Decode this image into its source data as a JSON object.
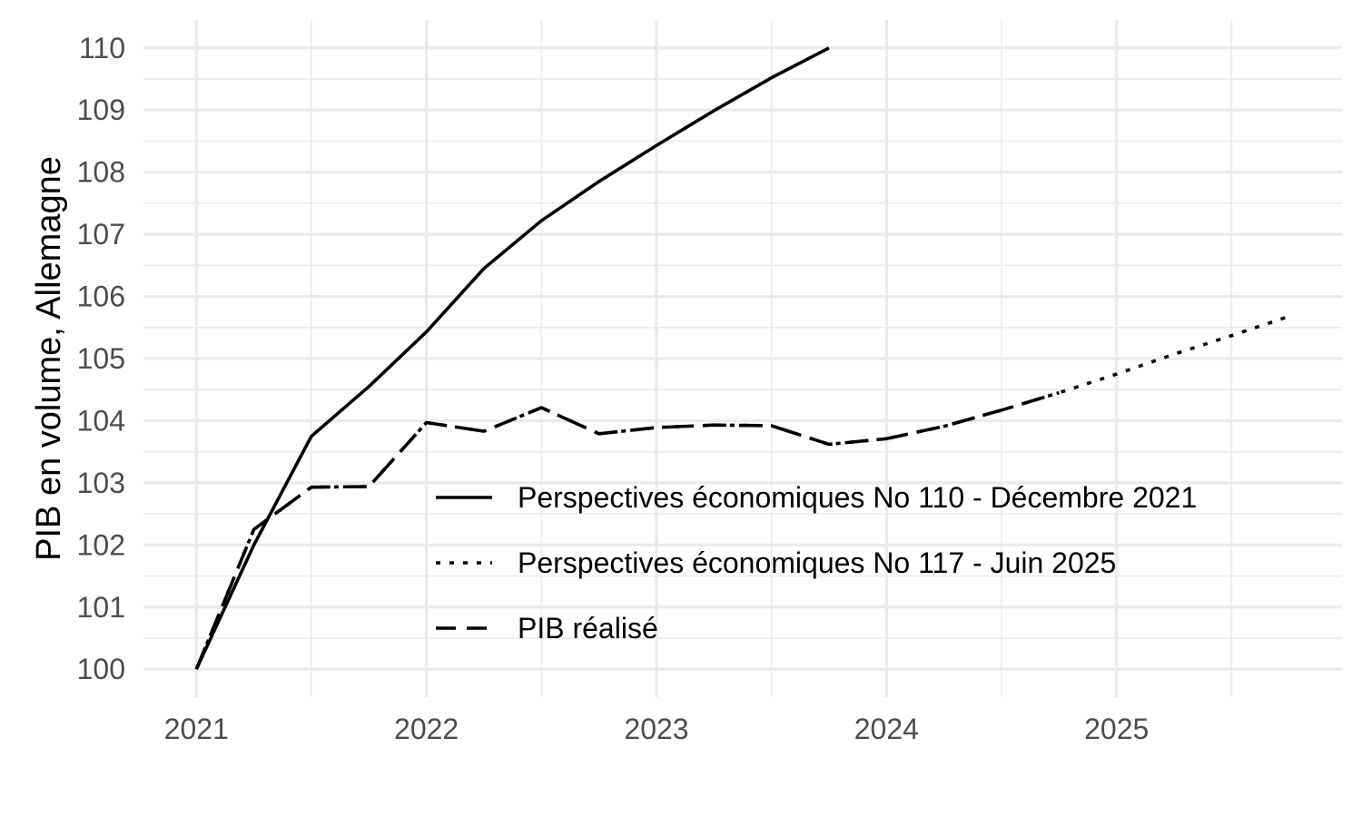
{
  "chart_data": {
    "type": "line",
    "title": "",
    "xlabel": "",
    "ylabel": "PIB en volume, Allemagne",
    "xlim": [
      2020.77,
      2025.98
    ],
    "ylim": [
      99.55,
      110.45
    ],
    "x_ticks": [
      2021,
      2022,
      2023,
      2024,
      2025
    ],
    "x_tick_labels": [
      "2021",
      "2022",
      "2023",
      "2024",
      "2025"
    ],
    "y_ticks": [
      100,
      101,
      102,
      103,
      104,
      105,
      106,
      107,
      108,
      109,
      110
    ],
    "y_tick_labels": [
      "100",
      "101",
      "102",
      "103",
      "104",
      "105",
      "106",
      "107",
      "108",
      "109",
      "110"
    ],
    "grid": true,
    "legend_position": "bottom-right (inside plot)",
    "series": [
      {
        "name": "Perspectives économiques No 110 - Décembre 2021",
        "line_style": "solid",
        "color": "#000000",
        "x": [
          2021.0,
          2021.25,
          2021.5,
          2021.75,
          2022.0,
          2022.25,
          2022.5,
          2022.75,
          2023.0,
          2023.25,
          2023.5,
          2023.75
        ],
        "y": [
          100.0,
          102.0,
          103.75,
          104.55,
          105.43,
          106.45,
          107.22,
          107.85,
          108.43,
          108.99,
          109.52,
          110.0
        ]
      },
      {
        "name": "Perspectives économiques No 117 - Juin 2025",
        "line_style": "dotted",
        "color": "#000000",
        "x": [
          2021.0,
          2021.25,
          2021.5,
          2021.75,
          2022.0,
          2022.25,
          2022.5,
          2022.75,
          2023.0,
          2023.25,
          2023.5,
          2023.75,
          2024.0,
          2024.25,
          2024.5,
          2024.75,
          2025.0,
          2025.25,
          2025.5,
          2025.75
        ],
        "y": [
          100.0,
          102.25,
          102.93,
          102.94,
          103.97,
          103.83,
          104.21,
          103.79,
          103.89,
          103.93,
          103.92,
          103.62,
          103.71,
          103.91,
          104.17,
          104.45,
          104.75,
          105.07,
          105.37,
          105.68
        ]
      },
      {
        "name": "PIB réalisé",
        "line_style": "dashed",
        "color": "#000000",
        "x": [
          2021.0,
          2021.25,
          2021.5,
          2021.75,
          2022.0,
          2022.25,
          2022.5,
          2022.75,
          2023.0,
          2023.25,
          2023.5,
          2023.75,
          2024.0,
          2024.25,
          2024.5,
          2024.75
        ],
        "y": [
          100.0,
          102.25,
          102.93,
          102.94,
          103.97,
          103.83,
          104.21,
          103.79,
          103.89,
          103.93,
          103.92,
          103.62,
          103.71,
          103.91,
          104.17,
          104.45
        ]
      }
    ]
  }
}
